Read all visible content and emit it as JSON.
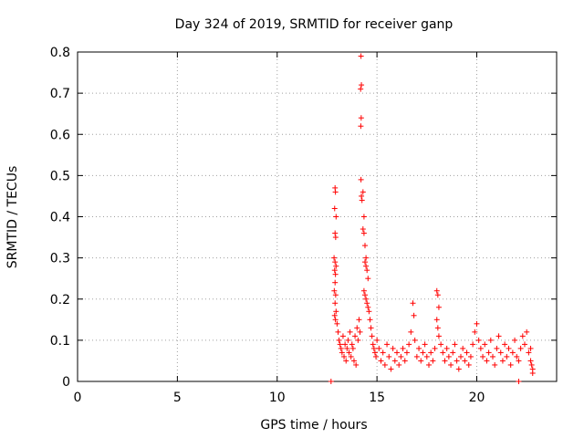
{
  "chart_data": {
    "type": "scatter",
    "title": "Day 324 of 2019, SRMTID for receiver ganp",
    "xlabel": "GPS time / hours",
    "ylabel": "SRMTID / TECUs",
    "xlim": [
      0,
      24
    ],
    "ylim": [
      0,
      0.8
    ],
    "xticks": [
      0,
      5,
      10,
      15,
      20
    ],
    "yticks": [
      0,
      0.1,
      0.2,
      0.3,
      0.4,
      0.5,
      0.6,
      0.7,
      0.8
    ],
    "xtick_labels": [
      "0",
      "5",
      "10",
      "15",
      "20"
    ],
    "ytick_labels": [
      "0",
      "0.1",
      "0.2",
      "0.3",
      "0.4",
      "0.5",
      "0.6",
      "0.7",
      "0.8"
    ],
    "grid": true,
    "marker": "+",
    "color": "#ff0000",
    "series": [
      {
        "name": "SRMTID",
        "points": [
          [
            12.9,
            0.47
          ],
          [
            12.92,
            0.46
          ],
          [
            12.88,
            0.42
          ],
          [
            12.95,
            0.4
          ],
          [
            12.9,
            0.36
          ],
          [
            12.93,
            0.35
          ],
          [
            12.85,
            0.3
          ],
          [
            12.9,
            0.29
          ],
          [
            12.95,
            0.28
          ],
          [
            12.88,
            0.27
          ],
          [
            12.92,
            0.26
          ],
          [
            12.9,
            0.24
          ],
          [
            12.86,
            0.22
          ],
          [
            12.93,
            0.21
          ],
          [
            12.9,
            0.19
          ],
          [
            12.95,
            0.17
          ],
          [
            12.88,
            0.16
          ],
          [
            12.92,
            0.15
          ],
          [
            13.0,
            0.14
          ],
          [
            13.05,
            0.12
          ],
          [
            13.1,
            0.1
          ],
          [
            13.15,
            0.09
          ],
          [
            13.2,
            0.08
          ],
          [
            13.25,
            0.07
          ],
          [
            13.3,
            0.11
          ],
          [
            13.35,
            0.06
          ],
          [
            13.4,
            0.09
          ],
          [
            13.45,
            0.05
          ],
          [
            13.5,
            0.08
          ],
          [
            13.55,
            0.1
          ],
          [
            13.6,
            0.07
          ],
          [
            13.65,
            0.12
          ],
          [
            13.7,
            0.06
          ],
          [
            13.75,
            0.09
          ],
          [
            13.8,
            0.08
          ],
          [
            13.85,
            0.05
          ],
          [
            13.9,
            0.11
          ],
          [
            13.95,
            0.04
          ],
          [
            14.0,
            0.13
          ],
          [
            14.05,
            0.1
          ],
          [
            14.1,
            0.15
          ],
          [
            14.15,
            0.12
          ],
          [
            14.2,
            0.79
          ],
          [
            14.22,
            0.72
          ],
          [
            14.18,
            0.71
          ],
          [
            14.21,
            0.64
          ],
          [
            14.19,
            0.62
          ],
          [
            14.2,
            0.49
          ],
          [
            14.22,
            0.45
          ],
          [
            14.25,
            0.44
          ],
          [
            14.3,
            0.46
          ],
          [
            14.35,
            0.4
          ],
          [
            14.3,
            0.37
          ],
          [
            14.35,
            0.36
          ],
          [
            14.4,
            0.33
          ],
          [
            14.45,
            0.3
          ],
          [
            14.4,
            0.29
          ],
          [
            14.45,
            0.28
          ],
          [
            14.5,
            0.27
          ],
          [
            14.55,
            0.25
          ],
          [
            14.35,
            0.22
          ],
          [
            14.4,
            0.21
          ],
          [
            14.45,
            0.2
          ],
          [
            14.5,
            0.19
          ],
          [
            14.55,
            0.18
          ],
          [
            14.6,
            0.17
          ],
          [
            14.65,
            0.15
          ],
          [
            14.7,
            0.13
          ],
          [
            14.75,
            0.11
          ],
          [
            14.8,
            0.09
          ],
          [
            14.85,
            0.08
          ],
          [
            14.9,
            0.07
          ],
          [
            14.95,
            0.06
          ],
          [
            15.0,
            0.1
          ],
          [
            15.1,
            0.08
          ],
          [
            15.2,
            0.05
          ],
          [
            15.3,
            0.07
          ],
          [
            15.4,
            0.04
          ],
          [
            15.5,
            0.09
          ],
          [
            15.6,
            0.06
          ],
          [
            15.7,
            0.03
          ],
          [
            15.8,
            0.08
          ],
          [
            15.9,
            0.05
          ],
          [
            16.0,
            0.07
          ],
          [
            16.1,
            0.04
          ],
          [
            16.2,
            0.06
          ],
          [
            16.3,
            0.08
          ],
          [
            16.4,
            0.05
          ],
          [
            16.5,
            0.07
          ],
          [
            16.6,
            0.09
          ],
          [
            16.7,
            0.12
          ],
          [
            16.8,
            0.19
          ],
          [
            16.85,
            0.16
          ],
          [
            16.9,
            0.1
          ],
          [
            17.0,
            0.06
          ],
          [
            17.1,
            0.08
          ],
          [
            17.2,
            0.05
          ],
          [
            17.3,
            0.07
          ],
          [
            17.4,
            0.09
          ],
          [
            17.5,
            0.06
          ],
          [
            17.6,
            0.04
          ],
          [
            17.7,
            0.07
          ],
          [
            17.8,
            0.05
          ],
          [
            17.9,
            0.08
          ],
          [
            18.0,
            0.22
          ],
          [
            18.05,
            0.21
          ],
          [
            18.1,
            0.18
          ],
          [
            18.0,
            0.15
          ],
          [
            18.05,
            0.13
          ],
          [
            18.1,
            0.11
          ],
          [
            18.2,
            0.09
          ],
          [
            18.3,
            0.07
          ],
          [
            18.4,
            0.05
          ],
          [
            18.5,
            0.08
          ],
          [
            18.6,
            0.06
          ],
          [
            18.7,
            0.04
          ],
          [
            18.8,
            0.07
          ],
          [
            18.9,
            0.09
          ],
          [
            19.0,
            0.05
          ],
          [
            19.1,
            0.03
          ],
          [
            19.2,
            0.06
          ],
          [
            19.3,
            0.08
          ],
          [
            19.4,
            0.05
          ],
          [
            19.5,
            0.07
          ],
          [
            19.6,
            0.04
          ],
          [
            19.7,
            0.06
          ],
          [
            19.8,
            0.09
          ],
          [
            19.9,
            0.12
          ],
          [
            20.0,
            0.14
          ],
          [
            20.1,
            0.1
          ],
          [
            20.2,
            0.08
          ],
          [
            20.3,
            0.06
          ],
          [
            20.4,
            0.09
          ],
          [
            20.5,
            0.05
          ],
          [
            20.6,
            0.07
          ],
          [
            20.7,
            0.1
          ],
          [
            20.8,
            0.06
          ],
          [
            20.9,
            0.04
          ],
          [
            21.0,
            0.08
          ],
          [
            21.1,
            0.11
          ],
          [
            21.2,
            0.07
          ],
          [
            21.3,
            0.05
          ],
          [
            21.4,
            0.09
          ],
          [
            21.5,
            0.06
          ],
          [
            21.6,
            0.08
          ],
          [
            21.7,
            0.04
          ],
          [
            21.8,
            0.07
          ],
          [
            21.9,
            0.1
          ],
          [
            22.0,
            0.06
          ],
          [
            22.1,
            0.05
          ],
          [
            22.2,
            0.08
          ],
          [
            22.3,
            0.11
          ],
          [
            22.4,
            0.09
          ],
          [
            22.5,
            0.12
          ],
          [
            22.6,
            0.07
          ],
          [
            22.7,
            0.05
          ],
          [
            22.75,
            0.04
          ],
          [
            22.8,
            0.03
          ],
          [
            22.8,
            0.02
          ],
          [
            22.7,
            0.08
          ],
          [
            12.7,
            0.0
          ],
          [
            22.1,
            0.0
          ]
        ]
      }
    ]
  }
}
